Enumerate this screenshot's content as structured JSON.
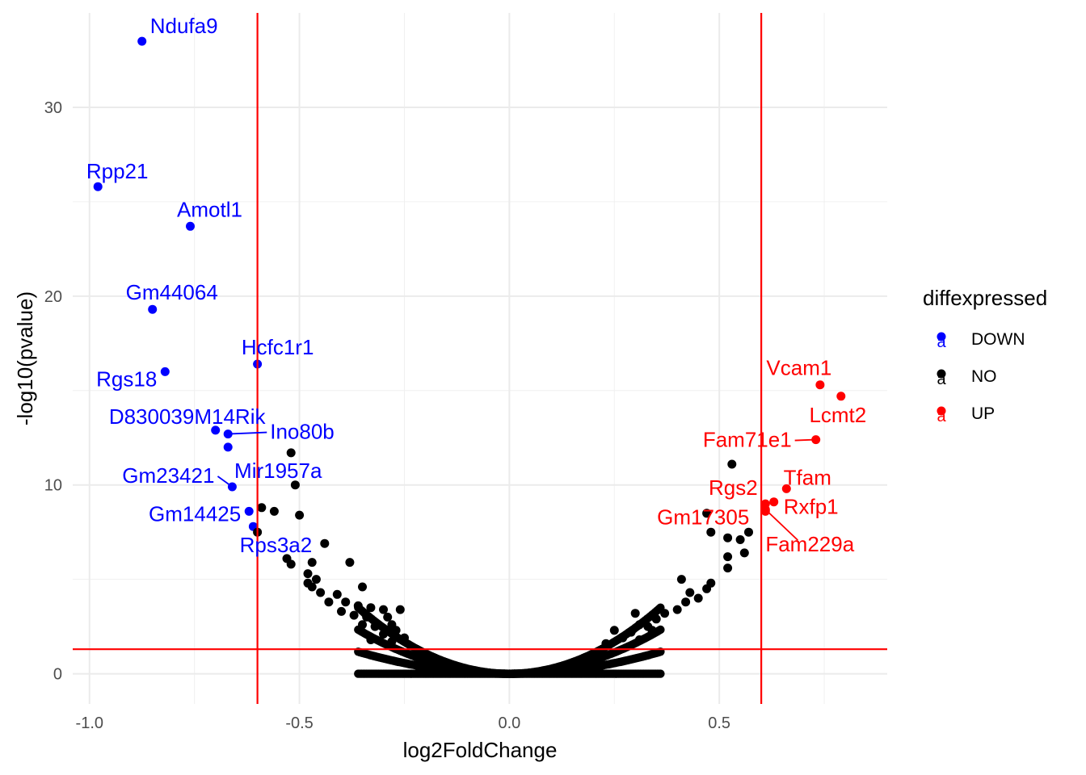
{
  "chart_data": {
    "type": "scatter",
    "title": "",
    "xlabel": "log2FoldChange",
    "ylabel": "-log10(pvalue)",
    "xlim": [
      -1.04,
      0.9
    ],
    "ylim": [
      -1.6,
      35
    ],
    "x_ticks": [
      -1.0,
      -0.5,
      0.0,
      0.5
    ],
    "x_tick_labels": [
      "-1.0",
      "-0.5",
      "0.0",
      "0.5"
    ],
    "y_ticks": [
      0,
      10,
      20,
      30
    ],
    "y_tick_labels": [
      "0",
      "10",
      "20",
      "30"
    ],
    "grid": true,
    "thresholds": {
      "vertical": [
        -0.6,
        0.6
      ],
      "horizontal": [
        1.3
      ],
      "color": "#ff0000"
    },
    "legend": {
      "title": "diffexpressed",
      "position": "right",
      "key_glyph": "a",
      "entries": [
        {
          "label": "DOWN",
          "color": "#0000ff"
        },
        {
          "label": "NO",
          "color": "#000000"
        },
        {
          "label": "UP",
          "color": "#ff0000"
        }
      ]
    },
    "series": [
      {
        "name": "DOWN",
        "color": "#0000ff",
        "points": [
          {
            "x": -0.875,
            "y": 33.5,
            "label": "Ndufa9"
          },
          {
            "x": -0.98,
            "y": 25.8,
            "label": "Rpp21"
          },
          {
            "x": -0.76,
            "y": 23.7,
            "label": "Amotl1"
          },
          {
            "x": -0.85,
            "y": 19.3,
            "label": "Gm44064"
          },
          {
            "x": -0.6,
            "y": 16.4,
            "label": "Hcfc1r1"
          },
          {
            "x": -0.82,
            "y": 16.0,
            "label": "Rgs18"
          },
          {
            "x": -0.7,
            "y": 12.9,
            "label": "D830039M14Rik"
          },
          {
            "x": -0.67,
            "y": 12.7,
            "label": "Ino80b"
          },
          {
            "x": -0.67,
            "y": 12.0,
            "label": "Mir1957a"
          },
          {
            "x": -0.66,
            "y": 9.9,
            "label": "Gm23421"
          },
          {
            "x": -0.62,
            "y": 8.6,
            "label": "Gm14425"
          },
          {
            "x": -0.61,
            "y": 7.8,
            "label": "Rps3a2"
          }
        ]
      },
      {
        "name": "UP",
        "color": "#ff0000",
        "points": [
          {
            "x": 0.74,
            "y": 15.3,
            "label": "Vcam1"
          },
          {
            "x": 0.79,
            "y": 14.7,
            "label": "Lcmt2"
          },
          {
            "x": 0.73,
            "y": 12.4,
            "label": "Fam71e1"
          },
          {
            "x": 0.66,
            "y": 9.8,
            "label": "Tfam"
          },
          {
            "x": 0.61,
            "y": 9.0,
            "label": "Rgs2"
          },
          {
            "x": 0.63,
            "y": 9.1,
            "label": "Rxfp1"
          },
          {
            "x": 0.61,
            "y": 8.7,
            "label": "Fam229a"
          },
          {
            "x": 0.61,
            "y": 8.6,
            "label": "Gm17305"
          }
        ]
      },
      {
        "name": "NO",
        "color": "#000000",
        "points": [
          {
            "x": -0.52,
            "y": 11.7
          },
          {
            "x": -0.51,
            "y": 10.0
          },
          {
            "x": -0.59,
            "y": 8.8
          },
          {
            "x": -0.56,
            "y": 8.6
          },
          {
            "x": -0.5,
            "y": 8.4
          },
          {
            "x": -0.6,
            "y": 7.5
          },
          {
            "x": -0.44,
            "y": 6.9
          },
          {
            "x": -0.53,
            "y": 6.1
          },
          {
            "x": -0.52,
            "y": 5.8
          },
          {
            "x": -0.47,
            "y": 5.9
          },
          {
            "x": -0.38,
            "y": 5.9
          },
          {
            "x": -0.48,
            "y": 5.3
          },
          {
            "x": -0.46,
            "y": 5.0
          },
          {
            "x": -0.47,
            "y": 4.6
          },
          {
            "x": -0.48,
            "y": 4.8
          },
          {
            "x": -0.45,
            "y": 4.3
          },
          {
            "x": -0.41,
            "y": 4.2
          },
          {
            "x": -0.35,
            "y": 4.6
          },
          {
            "x": -0.43,
            "y": 3.8
          },
          {
            "x": -0.39,
            "y": 3.8
          },
          {
            "x": -0.36,
            "y": 3.6
          },
          {
            "x": -0.33,
            "y": 3.5
          },
          {
            "x": -0.3,
            "y": 3.4
          },
          {
            "x": -0.26,
            "y": 3.4
          },
          {
            "x": -0.4,
            "y": 3.3
          },
          {
            "x": -0.37,
            "y": 3.1
          },
          {
            "x": -0.34,
            "y": 3.0
          },
          {
            "x": -0.29,
            "y": 3.0
          },
          {
            "x": -0.28,
            "y": 2.6
          },
          {
            "x": -0.35,
            "y": 2.6
          },
          {
            "x": -0.32,
            "y": 2.5
          },
          {
            "x": -0.27,
            "y": 2.3
          },
          {
            "x": -0.3,
            "y": 2.1
          },
          {
            "x": -0.25,
            "y": 1.9
          },
          {
            "x": -0.33,
            "y": 1.8
          },
          {
            "x": -0.28,
            "y": 1.7
          },
          {
            "x": 0.47,
            "y": 8.5
          },
          {
            "x": 0.53,
            "y": 11.1
          },
          {
            "x": 0.48,
            "y": 7.5
          },
          {
            "x": 0.52,
            "y": 7.2
          },
          {
            "x": 0.55,
            "y": 7.1
          },
          {
            "x": 0.57,
            "y": 7.5
          },
          {
            "x": 0.56,
            "y": 6.4
          },
          {
            "x": 0.52,
            "y": 6.2
          },
          {
            "x": 0.52,
            "y": 5.6
          },
          {
            "x": 0.41,
            "y": 5.0
          },
          {
            "x": 0.48,
            "y": 4.8
          },
          {
            "x": 0.47,
            "y": 4.5
          },
          {
            "x": 0.43,
            "y": 4.3
          },
          {
            "x": 0.45,
            "y": 4.0
          },
          {
            "x": 0.42,
            "y": 3.8
          },
          {
            "x": 0.4,
            "y": 3.4
          },
          {
            "x": 0.37,
            "y": 3.2
          },
          {
            "x": 0.3,
            "y": 3.2
          },
          {
            "x": 0.35,
            "y": 2.9
          },
          {
            "x": 0.31,
            "y": 2.6
          },
          {
            "x": 0.33,
            "y": 2.5
          },
          {
            "x": 0.25,
            "y": 2.3
          },
          {
            "x": 0.29,
            "y": 2.2
          },
          {
            "x": 0.34,
            "y": 2.3
          },
          {
            "x": 0.27,
            "y": 1.9
          },
          {
            "x": 0.31,
            "y": 1.8
          },
          {
            "x": 0.23,
            "y": 1.6
          }
        ]
      }
    ],
    "background_cloud": {
      "series": "NO",
      "color": "#000000",
      "model": "y = 27 * x^2",
      "x_range": [
        -0.36,
        0.36
      ],
      "x_step": 0.004
    }
  }
}
